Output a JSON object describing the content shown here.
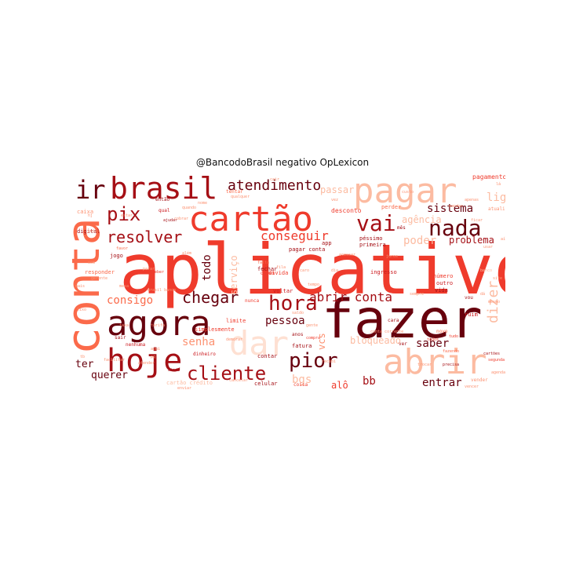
{
  "title": "@BancodoBrasil negativo OpLexicon",
  "palette": [
    "#67000d",
    "#a50f15",
    "#cb181d",
    "#ef3b2c",
    "#fb6a4a",
    "#fc9272",
    "#fcbba1",
    "#fee0d2"
  ],
  "words": [
    {
      "text": "aplicativo",
      "shade": 3
    },
    {
      "text": "fazer",
      "shade": 0
    },
    {
      "text": "conta",
      "shade": 4
    },
    {
      "text": "cartão",
      "shade": 3
    },
    {
      "text": "agora",
      "shade": 0
    },
    {
      "text": "abrir",
      "shade": 6
    },
    {
      "text": "pagar",
      "shade": 6
    },
    {
      "text": "brasil",
      "shade": 1
    },
    {
      "text": "hoje",
      "shade": 1
    },
    {
      "text": "dar",
      "shade": 7
    },
    {
      "text": "ir",
      "shade": 0
    },
    {
      "text": "nada",
      "shade": 0
    },
    {
      "text": "hora",
      "shade": 1
    },
    {
      "text": "pix",
      "shade": 1
    },
    {
      "text": "cliente",
      "shade": 1
    },
    {
      "text": "vai",
      "shade": 1
    },
    {
      "text": "pior",
      "shade": 0
    },
    {
      "text": "resolver",
      "shade": 1
    },
    {
      "text": "atendimento",
      "shade": 0
    },
    {
      "text": "chegar",
      "shade": 0
    },
    {
      "text": "abrir conta",
      "shade": 1
    },
    {
      "text": "conseguir",
      "shade": 3
    },
    {
      "text": "dizer",
      "shade": 6
    },
    {
      "text": "pessoa",
      "shade": 0
    },
    {
      "text": "senha",
      "shade": 5
    },
    {
      "text": "consigo",
      "shade": 4
    },
    {
      "text": "sistema",
      "shade": 0
    },
    {
      "text": "problema",
      "shade": 1
    },
    {
      "text": "todo",
      "shade": 0
    },
    {
      "text": "bb",
      "shade": 1
    },
    {
      "text": "entrar",
      "shade": 0
    },
    {
      "text": "saber",
      "shade": 0
    },
    {
      "text": "querer",
      "shade": 0
    },
    {
      "text": "ter",
      "shade": 0
    },
    {
      "text": "bgs",
      "shade": 6
    },
    {
      "text": "alô",
      "shade": 3
    },
    {
      "text": "ligar",
      "shade": 6
    },
    {
      "text": "poder",
      "shade": 6
    },
    {
      "text": "serviço",
      "shade": 6
    },
    {
      "text": "agência",
      "shade": 6
    },
    {
      "text": "bloqueado",
      "shade": 6
    },
    {
      "text": "passar",
      "shade": 6
    },
    {
      "text": "desconto",
      "shade": 3
    },
    {
      "text": "pagamento",
      "shade": 3
    },
    {
      "text": "ontem",
      "shade": 3
    },
    {
      "text": "péssimo",
      "shade": 1
    },
    {
      "text": "primeira",
      "shade": 1
    },
    {
      "text": "voltar",
      "shade": 2
    },
    {
      "text": "limite",
      "shade": 3
    },
    {
      "text": "fatura",
      "shade": 1
    },
    {
      "text": "contar",
      "shade": 1
    },
    {
      "text": "celular",
      "shade": 1
    },
    {
      "text": "cartão crédito",
      "shade": 6
    },
    {
      "text": "coisa",
      "shade": 3
    },
    {
      "text": "responder",
      "shade": 4
    },
    {
      "text": "caixa",
      "shade": 5
    },
    {
      "text": "digital",
      "shade": 1
    },
    {
      "text": "jogo",
      "shade": 1
    },
    {
      "text": "simplesmente",
      "shade": 3
    },
    {
      "text": "nenhuma",
      "shade": 2
    },
    {
      "text": "dinheiro",
      "shade": 2
    },
    {
      "text": "número",
      "shade": 3
    },
    {
      "text": "ingresso",
      "shade": 2
    },
    {
      "text": "fechar",
      "shade": 1
    },
    {
      "text": "dívida",
      "shade": 3
    },
    {
      "text": "ruim",
      "shade": 2
    },
    {
      "text": "outro",
      "shade": 2
    },
    {
      "text": "vida",
      "shade": 1
    },
    {
      "text": "perder",
      "shade": 4
    },
    {
      "text": "tentar",
      "shade": 4
    },
    {
      "text": "sair",
      "shade": 1
    },
    {
      "text": "ainda",
      "shade": 1
    },
    {
      "text": "compra",
      "shade": 3
    },
    {
      "text": "vcs",
      "shade": 5
    },
    {
      "text": "pagar conta",
      "shade": 1
    },
    {
      "text": "ver",
      "shade": 1
    },
    {
      "text": "anos",
      "shade": 1
    },
    {
      "text": "nunca",
      "shade": 3
    },
    {
      "text": "vou",
      "shade": 1
    },
    {
      "text": "atualizar",
      "shade": 5
    },
    {
      "text": "então",
      "shade": 1
    },
    {
      "text": "app",
      "shade": 1
    },
    {
      "text": "qual",
      "shade": 2
    },
    {
      "text": "mês",
      "shade": 1
    },
    {
      "text": "cara",
      "shade": 1
    },
    {
      "text": "novo",
      "shade": 4
    },
    {
      "text": "vender",
      "shade": 5
    },
    {
      "text": "desbloquear",
      "shade": 4
    },
    {
      "text": "precisa",
      "shade": 1
    },
    {
      "text": "segunda",
      "shade": 3
    },
    {
      "text": "ajudar",
      "shade": 1
    },
    {
      "text": "tudo",
      "shade": 3
    },
    {
      "text": "todos",
      "shade": 3
    },
    {
      "text": "receber",
      "shade": 3
    },
    {
      "text": "cair",
      "shade": 5
    },
    {
      "text": "mesmo",
      "shade": 5
    },
    {
      "text": "gente",
      "shade": 5
    },
    {
      "text": "cartões",
      "shade": 1
    },
    {
      "text": "fazendo",
      "shade": 4
    },
    {
      "text": "pois",
      "shade": 5
    },
    {
      "text": "banco",
      "shade": 6
    },
    {
      "text": "favor",
      "shade": 4
    },
    {
      "text": "além",
      "shade": 5
    },
    {
      "text": "agenda",
      "shade": 5
    },
    {
      "text": "conta corrente",
      "shade": 5
    },
    {
      "text": "dia",
      "shade": 5
    },
    {
      "text": "falta",
      "shade": 4
    },
    {
      "text": "parar",
      "shade": 5
    },
    {
      "text": "sempre",
      "shade": 5
    },
    {
      "text": "tempo",
      "shade": 5
    },
    {
      "text": "nome",
      "shade": 5
    },
    {
      "text": "gerente",
      "shade": 5
    },
    {
      "text": "apenas",
      "shade": 5
    },
    {
      "text": "custo",
      "shade": 5
    },
    {
      "text": "sem",
      "shade": 5
    },
    {
      "text": "estar",
      "shade": 5
    },
    {
      "text": "usar",
      "shade": 5
    },
    {
      "text": "site",
      "shade": 5
    },
    {
      "text": "quando",
      "shade": 5
    },
    {
      "text": "aqui",
      "shade": 5
    },
    {
      "text": "vez",
      "shade": 5
    },
    {
      "text": "saldo",
      "shade": 5
    },
    {
      "text": "cancelar",
      "shade": 5
    },
    {
      "text": "trocar",
      "shade": 5
    },
    {
      "text": "mandar",
      "shade": 5
    },
    {
      "text": "ficar",
      "shade": 5
    },
    {
      "text": "brasil banco",
      "shade": 5
    },
    {
      "text": "acessar",
      "shade": 5
    },
    {
      "text": "mais",
      "shade": 5
    },
    {
      "text": "lixo",
      "shade": 5
    },
    {
      "text": "vencer",
      "shade": 5
    },
    {
      "text": "cobrar",
      "shade": 5
    },
    {
      "text": "enviar",
      "shade": 5
    },
    {
      "text": "juros",
      "shade": 5
    },
    {
      "text": "tarifa",
      "shade": 5
    },
    {
      "text": "taxa",
      "shade": 5
    },
    {
      "text": "demorar",
      "shade": 5
    },
    {
      "text": "dá",
      "shade": 5
    },
    {
      "text": "hj",
      "shade": 5
    },
    {
      "text": "tb",
      "shade": 5
    },
    {
      "text": "lá",
      "shade": 5
    },
    {
      "text": "aí",
      "shade": 5
    },
    {
      "text": "pq",
      "shade": 5
    },
    {
      "text": "qualquer",
      "shade": 5
    },
    {
      "text": "mesa",
      "shade": 5
    },
    {
      "text": "facilitar",
      "shade": 5
    },
    {
      "text": "atender",
      "shade": 5
    },
    {
      "text": "fila",
      "shade": 5
    },
    {
      "text": "caro",
      "shade": 5
    },
    {
      "text": "recebi",
      "shade": 5
    }
  ]
}
